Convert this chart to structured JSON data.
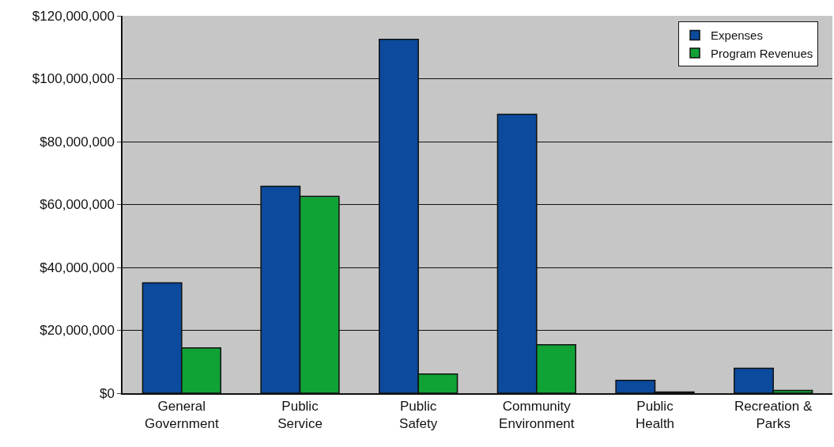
{
  "chart_data": {
    "type": "bar",
    "categories": [
      "General Government",
      "Public Service",
      "Public Safety",
      "Community Environment",
      "Public Health",
      "Recreation & Parks"
    ],
    "series": [
      {
        "name": "Expenses",
        "color": "#0b4a9c",
        "values": [
          35100000,
          65800000,
          112500000,
          88700000,
          4100000,
          7900000
        ]
      },
      {
        "name": "Program Revenues",
        "color": "#11a236",
        "values": [
          14400000,
          62600000,
          6100000,
          15400000,
          400000,
          900000
        ]
      }
    ],
    "ylim": [
      0,
      120000000
    ],
    "yticks": [
      {
        "value": 0,
        "label": "$0"
      },
      {
        "value": 20000000,
        "label": "$20,000,000"
      },
      {
        "value": 40000000,
        "label": "$40,000,000"
      },
      {
        "value": 60000000,
        "label": "$60,000,000"
      },
      {
        "value": 80000000,
        "label": "$80,000,000"
      },
      {
        "value": 100000000,
        "label": "$100,000,000"
      },
      {
        "value": 120000000,
        "label": "$120,000,000"
      }
    ],
    "grid": "y",
    "legend": "top right"
  }
}
